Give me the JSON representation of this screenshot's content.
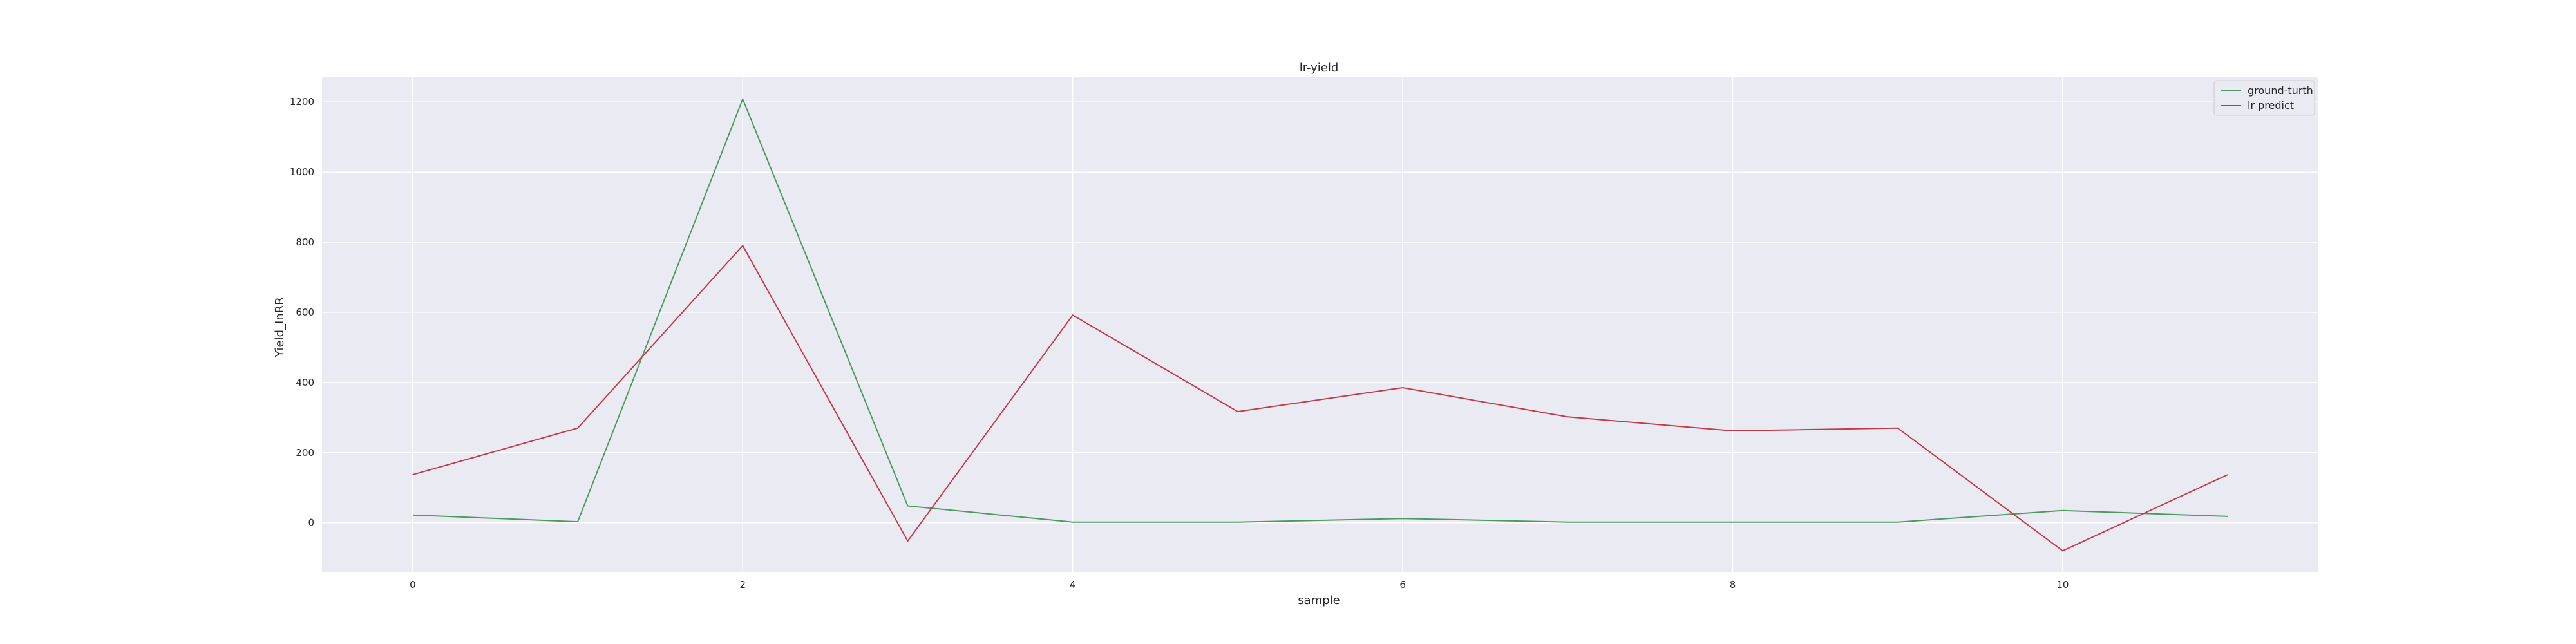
{
  "chart_data": {
    "type": "line",
    "title": "lr-yield",
    "xlabel": "sample",
    "ylabel": "Yield_InRR",
    "x": [
      0,
      1,
      2,
      3,
      4,
      5,
      6,
      7,
      8,
      9,
      10,
      11
    ],
    "xlim": [
      -0.55,
      11.55
    ],
    "ylim": [
      -140,
      1270
    ],
    "x_ticks": [
      0,
      2,
      4,
      6,
      8,
      10
    ],
    "y_ticks": [
      0,
      200,
      400,
      600,
      800,
      1000,
      1200
    ],
    "grid": true,
    "legend_position": "top-right",
    "series": [
      {
        "name": "ground-turth",
        "color": "#4c9a62",
        "values": [
          22,
          3,
          1208,
          48,
          2,
          2,
          12,
          2,
          2,
          2,
          35,
          18
        ]
      },
      {
        "name": "lr predict",
        "color": "#c23b4c",
        "values": [
          137,
          270,
          790,
          -52,
          592,
          317,
          385,
          302,
          262,
          270,
          -80,
          137
        ]
      }
    ]
  }
}
